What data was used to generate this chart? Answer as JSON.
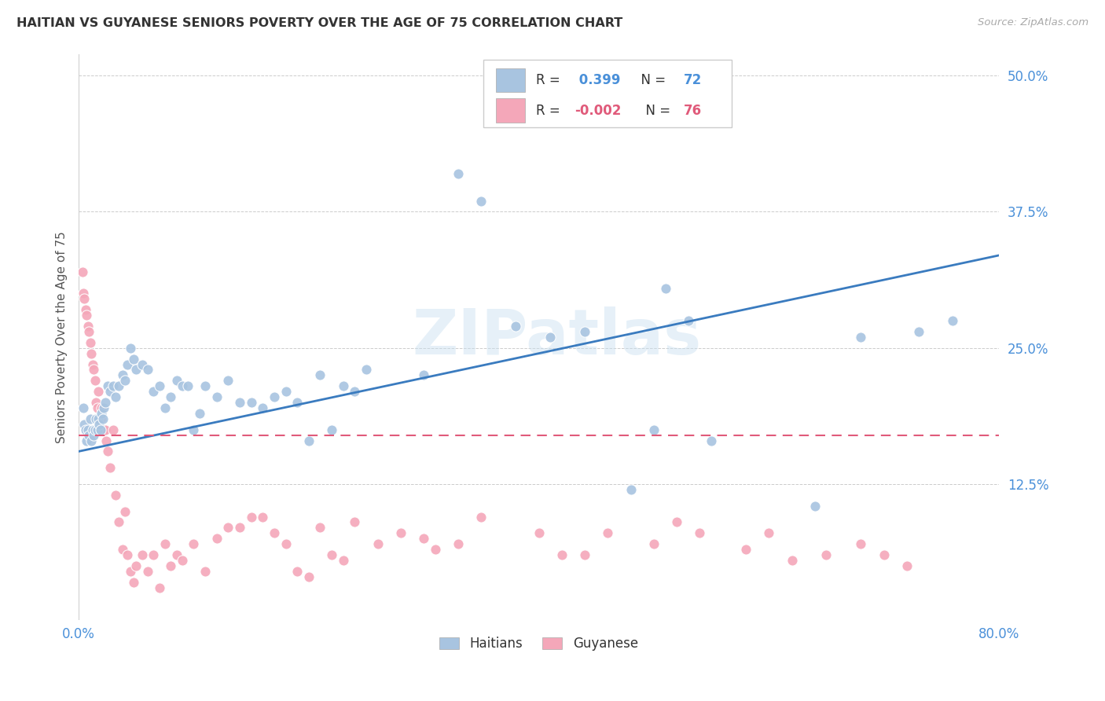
{
  "title": "HAITIAN VS GUYANESE SENIORS POVERTY OVER THE AGE OF 75 CORRELATION CHART",
  "source": "Source: ZipAtlas.com",
  "ylabel": "Seniors Poverty Over the Age of 75",
  "xlim": [
    0.0,
    0.8
  ],
  "ylim": [
    0.0,
    0.52
  ],
  "yticks": [
    0.0,
    0.125,
    0.25,
    0.375,
    0.5
  ],
  "ytick_labels": [
    "",
    "12.5%",
    "25.0%",
    "37.5%",
    "50.0%"
  ],
  "xtick_vals": [
    0.0,
    0.1,
    0.2,
    0.3,
    0.4,
    0.5,
    0.6,
    0.7,
    0.8
  ],
  "xtick_labels": [
    "0.0%",
    "",
    "",
    "",
    "",
    "",
    "",
    "",
    "80.0%"
  ],
  "haitian_color": "#a8c4e0",
  "guyanese_color": "#f4a7b9",
  "haitian_R": 0.399,
  "haitian_N": 72,
  "guyanese_R": -0.002,
  "guyanese_N": 76,
  "haitian_line_color": "#3a7bbf",
  "guyanese_line_color": "#e05a7a",
  "haitian_line_start_y": 0.155,
  "haitian_line_end_y": 0.335,
  "guyanese_line_y": 0.17,
  "watermark": "ZIPatlas",
  "background_color": "#ffffff",
  "haitian_x": [
    0.004,
    0.005,
    0.006,
    0.007,
    0.008,
    0.009,
    0.01,
    0.011,
    0.012,
    0.013,
    0.014,
    0.015,
    0.016,
    0.017,
    0.018,
    0.019,
    0.02,
    0.021,
    0.022,
    0.023,
    0.025,
    0.027,
    0.03,
    0.032,
    0.035,
    0.038,
    0.04,
    0.042,
    0.045,
    0.048,
    0.05,
    0.055,
    0.06,
    0.065,
    0.07,
    0.075,
    0.08,
    0.085,
    0.09,
    0.095,
    0.1,
    0.105,
    0.11,
    0.12,
    0.13,
    0.14,
    0.15,
    0.16,
    0.17,
    0.18,
    0.19,
    0.2,
    0.21,
    0.22,
    0.23,
    0.24,
    0.25,
    0.3,
    0.33,
    0.35,
    0.38,
    0.41,
    0.44,
    0.48,
    0.5,
    0.51,
    0.53,
    0.55,
    0.64,
    0.68,
    0.73,
    0.76
  ],
  "haitian_y": [
    0.195,
    0.18,
    0.175,
    0.165,
    0.175,
    0.17,
    0.185,
    0.165,
    0.175,
    0.17,
    0.175,
    0.185,
    0.175,
    0.185,
    0.18,
    0.175,
    0.19,
    0.185,
    0.195,
    0.2,
    0.215,
    0.21,
    0.215,
    0.205,
    0.215,
    0.225,
    0.22,
    0.235,
    0.25,
    0.24,
    0.23,
    0.235,
    0.23,
    0.21,
    0.215,
    0.195,
    0.205,
    0.22,
    0.215,
    0.215,
    0.175,
    0.19,
    0.215,
    0.205,
    0.22,
    0.2,
    0.2,
    0.195,
    0.205,
    0.21,
    0.2,
    0.165,
    0.225,
    0.175,
    0.215,
    0.21,
    0.23,
    0.225,
    0.41,
    0.385,
    0.27,
    0.26,
    0.265,
    0.12,
    0.175,
    0.305,
    0.275,
    0.165,
    0.105,
    0.26,
    0.265,
    0.275
  ],
  "guyanese_x": [
    0.003,
    0.004,
    0.005,
    0.006,
    0.007,
    0.008,
    0.009,
    0.01,
    0.011,
    0.012,
    0.013,
    0.014,
    0.015,
    0.016,
    0.017,
    0.018,
    0.019,
    0.02,
    0.021,
    0.022,
    0.023,
    0.024,
    0.025,
    0.027,
    0.03,
    0.032,
    0.035,
    0.038,
    0.04,
    0.042,
    0.045,
    0.048,
    0.05,
    0.055,
    0.06,
    0.065,
    0.07,
    0.075,
    0.08,
    0.085,
    0.09,
    0.1,
    0.11,
    0.12,
    0.13,
    0.14,
    0.15,
    0.16,
    0.17,
    0.18,
    0.19,
    0.2,
    0.21,
    0.22,
    0.23,
    0.24,
    0.26,
    0.28,
    0.3,
    0.31,
    0.33,
    0.35,
    0.4,
    0.42,
    0.44,
    0.46,
    0.5,
    0.52,
    0.54,
    0.58,
    0.6,
    0.62,
    0.65,
    0.68,
    0.7,
    0.72
  ],
  "guyanese_y": [
    0.32,
    0.3,
    0.295,
    0.285,
    0.28,
    0.27,
    0.265,
    0.255,
    0.245,
    0.235,
    0.23,
    0.22,
    0.2,
    0.195,
    0.21,
    0.185,
    0.185,
    0.195,
    0.175,
    0.175,
    0.175,
    0.165,
    0.155,
    0.14,
    0.175,
    0.115,
    0.09,
    0.065,
    0.1,
    0.06,
    0.045,
    0.035,
    0.05,
    0.06,
    0.045,
    0.06,
    0.03,
    0.07,
    0.05,
    0.06,
    0.055,
    0.07,
    0.045,
    0.075,
    0.085,
    0.085,
    0.095,
    0.095,
    0.08,
    0.07,
    0.045,
    0.04,
    0.085,
    0.06,
    0.055,
    0.09,
    0.07,
    0.08,
    0.075,
    0.065,
    0.07,
    0.095,
    0.08,
    0.06,
    0.06,
    0.08,
    0.07,
    0.09,
    0.08,
    0.065,
    0.08,
    0.055,
    0.06,
    0.07,
    0.06,
    0.05
  ]
}
